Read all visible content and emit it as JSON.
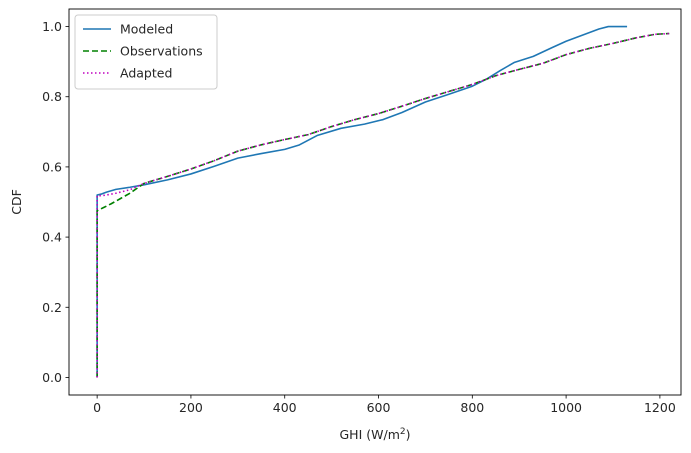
{
  "chart_data": {
    "type": "line",
    "title": "",
    "xlabel": "GHI (W/m",
    "xlabel_sup": "2",
    "xlabel_suffix": ")",
    "ylabel": "CDF",
    "xlim": [
      -60,
      1245
    ],
    "ylim": [
      -0.05,
      1.05
    ],
    "xticks": [
      0,
      200,
      400,
      600,
      800,
      1000,
      1200
    ],
    "xtick_labels": [
      "0",
      "200",
      "400",
      "600",
      "800",
      "1000",
      "1200"
    ],
    "yticks": [
      0.0,
      0.2,
      0.4,
      0.6,
      0.8,
      1.0
    ],
    "ytick_labels": [
      "0.0",
      "0.2",
      "0.4",
      "0.6",
      "0.8",
      "1.0"
    ],
    "grid": false,
    "legend_position": "top-left",
    "series": [
      {
        "name": "Modeled",
        "color": "#1f77b4",
        "style": "solid",
        "points": [
          [
            0,
            0.0
          ],
          [
            0,
            0.52
          ],
          [
            10,
            0.523
          ],
          [
            20,
            0.528
          ],
          [
            40,
            0.536
          ],
          [
            70,
            0.542
          ],
          [
            100,
            0.549
          ],
          [
            150,
            0.563
          ],
          [
            200,
            0.58
          ],
          [
            250,
            0.602
          ],
          [
            300,
            0.625
          ],
          [
            350,
            0.638
          ],
          [
            400,
            0.65
          ],
          [
            430,
            0.662
          ],
          [
            470,
            0.69
          ],
          [
            520,
            0.71
          ],
          [
            570,
            0.722
          ],
          [
            610,
            0.735
          ],
          [
            650,
            0.755
          ],
          [
            700,
            0.785
          ],
          [
            750,
            0.807
          ],
          [
            800,
            0.83
          ],
          [
            830,
            0.85
          ],
          [
            860,
            0.875
          ],
          [
            890,
            0.898
          ],
          [
            930,
            0.915
          ],
          [
            970,
            0.94
          ],
          [
            1000,
            0.958
          ],
          [
            1040,
            0.978
          ],
          [
            1070,
            0.993
          ],
          [
            1090,
            1.0
          ],
          [
            1130,
            1.0
          ]
        ]
      },
      {
        "name": "Observations",
        "color": "#008000",
        "style": "dashed",
        "points": [
          [
            0,
            0.0
          ],
          [
            0,
            0.475
          ],
          [
            15,
            0.485
          ],
          [
            30,
            0.495
          ],
          [
            50,
            0.51
          ],
          [
            70,
            0.525
          ],
          [
            100,
            0.553
          ],
          [
            150,
            0.573
          ],
          [
            200,
            0.594
          ],
          [
            250,
            0.618
          ],
          [
            300,
            0.645
          ],
          [
            350,
            0.663
          ],
          [
            400,
            0.678
          ],
          [
            450,
            0.692
          ],
          [
            500,
            0.715
          ],
          [
            550,
            0.735
          ],
          [
            600,
            0.752
          ],
          [
            650,
            0.773
          ],
          [
            700,
            0.795
          ],
          [
            750,
            0.815
          ],
          [
            800,
            0.835
          ],
          [
            850,
            0.86
          ],
          [
            900,
            0.878
          ],
          [
            950,
            0.895
          ],
          [
            1000,
            0.92
          ],
          [
            1050,
            0.938
          ],
          [
            1100,
            0.952
          ],
          [
            1150,
            0.968
          ],
          [
            1190,
            0.978
          ],
          [
            1220,
            0.98
          ]
        ]
      },
      {
        "name": "Adapted",
        "color": "#bf00bf",
        "style": "dotted",
        "points": [
          [
            0,
            0.0
          ],
          [
            0,
            0.518
          ],
          [
            10,
            0.518
          ],
          [
            20,
            0.52
          ],
          [
            40,
            0.525
          ],
          [
            70,
            0.535
          ],
          [
            100,
            0.553
          ],
          [
            150,
            0.573
          ],
          [
            200,
            0.594
          ],
          [
            250,
            0.618
          ],
          [
            300,
            0.645
          ],
          [
            350,
            0.663
          ],
          [
            400,
            0.678
          ],
          [
            450,
            0.692
          ],
          [
            500,
            0.715
          ],
          [
            550,
            0.735
          ],
          [
            600,
            0.752
          ],
          [
            650,
            0.773
          ],
          [
            700,
            0.795
          ],
          [
            750,
            0.815
          ],
          [
            800,
            0.835
          ],
          [
            850,
            0.86
          ],
          [
            900,
            0.878
          ],
          [
            950,
            0.895
          ],
          [
            1000,
            0.92
          ],
          [
            1050,
            0.938
          ],
          [
            1100,
            0.952
          ],
          [
            1150,
            0.968
          ],
          [
            1190,
            0.978
          ],
          [
            1220,
            0.98
          ]
        ]
      }
    ]
  }
}
